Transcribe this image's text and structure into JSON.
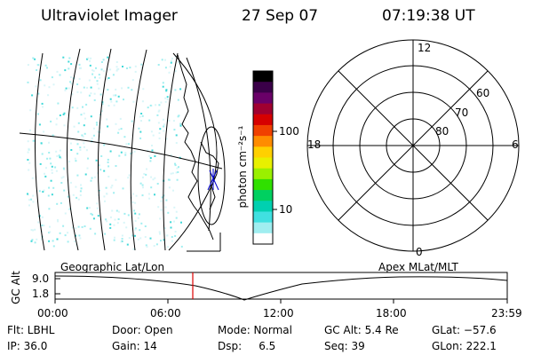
{
  "header": {
    "instrument": "Ultraviolet Imager",
    "date": "27 Sep 07",
    "time": "07:19:38 UT"
  },
  "colorbar": {
    "label": "photon cm⁻²s⁻¹",
    "ticks": [
      "100",
      "10"
    ],
    "colors": [
      "#000000",
      "#3a0048",
      "#6a0068",
      "#a00030",
      "#d60000",
      "#f04000",
      "#ff8c00",
      "#ffd000",
      "#e8f000",
      "#9af000",
      "#30e000",
      "#00d060",
      "#00d0b0",
      "#40e0e0",
      "#a0eef0",
      "#ffffff"
    ]
  },
  "polar": {
    "mlt_labels": {
      "top": "12",
      "left": "18",
      "right": "6",
      "bottom": "0"
    },
    "lat_labels": [
      "60",
      "70",
      "80"
    ]
  },
  "timeline": {
    "left_label": "Geographic Lat/Lon",
    "right_label": "Apex MLat/MLT",
    "y_label": "GC Alt",
    "y_ticks": [
      "9.0",
      "1.8"
    ],
    "x_ticks": [
      "00:00",
      "06:00",
      "12:00",
      "18:00",
      "23:59"
    ],
    "marker_time": "07:19:38",
    "marker_color": "#dd0000"
  },
  "info": {
    "filter": "Flt: LBHL",
    "ip": "IP: 36.0",
    "door": "Door: Open",
    "gain": "Gain: 14",
    "mode": "Mode: Normal",
    "dsp": "Dsp:     6.5",
    "gc_alt": "GC Alt: 5.4 Re",
    "seq": "Seq: 39",
    "glat": "GLat: −57.6",
    "glon": "GLon: 222.1"
  }
}
